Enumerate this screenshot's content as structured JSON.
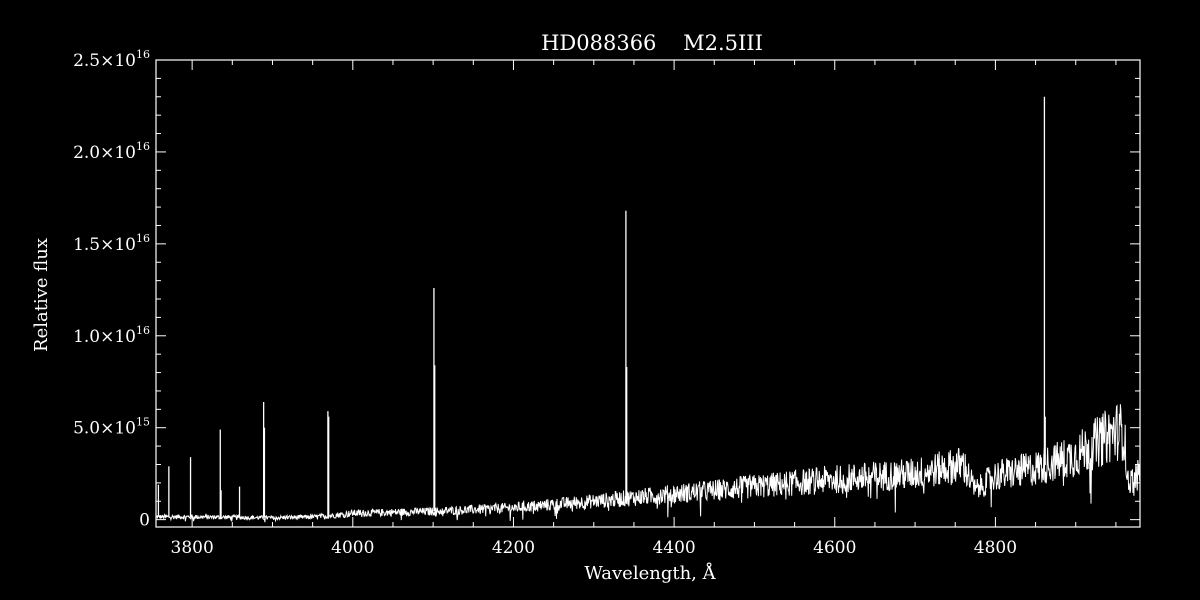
{
  "chart_data": {
    "type": "line",
    "title": "HD088366    M2.5III",
    "xlabel": "Wavelength, Å",
    "ylabel": "Relative flux",
    "xlim": [
      3755,
      4980
    ],
    "ylim": [
      -400000000000000.0,
      2.5e+16
    ],
    "grid": false,
    "x_ticks": [
      3800,
      4000,
      4200,
      4400,
      4600,
      4800
    ],
    "x_tick_labels": [
      "3800",
      "4000",
      "4200",
      "4400",
      "4600",
      "4800"
    ],
    "y_ticks": [
      {
        "value": 0,
        "mantissa": "0",
        "exponent": ""
      },
      {
        "value": 5000000000000000.0,
        "mantissa": "5.0×10",
        "exponent": "15"
      },
      {
        "value": 1e+16,
        "mantissa": "1.0×10",
        "exponent": "16"
      },
      {
        "value": 1.5e+16,
        "mantissa": "1.5×10",
        "exponent": "16"
      },
      {
        "value": 2e+16,
        "mantissa": "2.0×10",
        "exponent": "16"
      },
      {
        "value": 2.5e+16,
        "mantissa": "2.5×10",
        "exponent": "16"
      }
    ],
    "continuum": [
      [
        3755,
        150000000000000.0
      ],
      [
        3800,
        150000000000000.0
      ],
      [
        3900,
        100000000000000.0
      ],
      [
        3950,
        150000000000000.0
      ],
      [
        3970,
        200000000000000.0
      ],
      [
        4000,
        350000000000000.0
      ],
      [
        4050,
        400000000000000.0
      ],
      [
        4100,
        450000000000000.0
      ],
      [
        4200,
        650000000000000.0
      ],
      [
        4300,
        1000000000000000.0
      ],
      [
        4400,
        1400000000000000.0
      ],
      [
        4500,
        1800000000000000.0
      ],
      [
        4600,
        2200000000000000.0
      ],
      [
        4700,
        2500000000000000.0
      ],
      [
        4760,
        3000000000000000.0
      ],
      [
        4775,
        1600000000000000.0
      ],
      [
        4800,
        2400000000000000.0
      ],
      [
        4850,
        2800000000000000.0
      ],
      [
        4900,
        3500000000000000.0
      ],
      [
        4950,
        4800000000000000.0
      ],
      [
        4960,
        4800000000000000.0
      ],
      [
        4965,
        2000000000000000.0
      ],
      [
        4980,
        2500000000000000.0
      ]
    ],
    "emission_lines": [
      {
        "x": 3758,
        "y": 1900000000000000.0
      },
      {
        "x": 3771,
        "y": 2900000000000000.0
      },
      {
        "x": 3798,
        "y": 3400000000000000.0
      },
      {
        "x": 3835,
        "y": 4900000000000000.0
      },
      {
        "x": 3836,
        "y": 1600000000000000.0
      },
      {
        "x": 3859,
        "y": 1800000000000000.0
      },
      {
        "x": 3889,
        "y": 6400000000000000.0
      },
      {
        "x": 3890,
        "y": 5000000000000000.0
      },
      {
        "x": 3969,
        "y": 5900000000000000.0
      },
      {
        "x": 3970,
        "y": 5600000000000000.0
      },
      {
        "x": 4101,
        "y": 1.26e+16
      },
      {
        "x": 4102,
        "y": 8400000000000000.0
      },
      {
        "x": 4340,
        "y": 1.68e+16
      },
      {
        "x": 4341,
        "y": 8300000000000000.0
      },
      {
        "x": 4861,
        "y": 2.3e+16
      },
      {
        "x": 4862,
        "y": 5600000000000000.0
      }
    ]
  }
}
